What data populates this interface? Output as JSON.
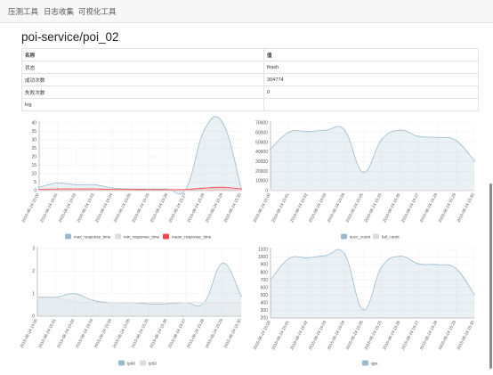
{
  "nav": {
    "items": [
      "压测工具",
      "日志收集",
      "可视化工具"
    ]
  },
  "page_title": "poi-service/poi_02",
  "info_table": {
    "headers": [
      "名称",
      "值"
    ],
    "rows": [
      {
        "key": "状态",
        "value": "finish"
      },
      {
        "key": "成功次数",
        "value": "304774"
      },
      {
        "key": "失败次数",
        "value": "0"
      },
      {
        "key": "log",
        "value": ""
      }
    ]
  },
  "categories": [
    "2015-06-24 15:00",
    "2015-06-24 15:01",
    "2015-06-24 15:02",
    "2015-06-24 15:03",
    "2015-06-24 15:04",
    "2015-06-24 15:05",
    "2015-06-24 15:25",
    "2015-06-24 15:26",
    "2015-06-24 15:27",
    "2015-06-24 15:28",
    "2015-06-24 15:29",
    "2015-06-24 15:30"
  ],
  "chart_data": [
    {
      "type": "area",
      "ylim": [
        0,
        40
      ],
      "yticks": [
        0,
        5,
        10,
        15,
        20,
        25,
        30,
        35,
        40
      ],
      "series": [
        {
          "name": "max_response_time",
          "color": "#97bbcd",
          "values": [
            2,
            4.5,
            3.5,
            3.5,
            1.5,
            1,
            1,
            1,
            1,
            36,
            40,
            1.5
          ]
        },
        {
          "name": "min_response_time",
          "color": "#dcdcdc",
          "values": [
            0,
            0,
            0,
            0,
            0,
            0,
            0,
            0,
            0,
            0,
            0,
            0
          ]
        },
        {
          "name": "mean_response_time",
          "color": "#f7464a",
          "values": [
            0.8,
            1,
            1,
            1,
            0.8,
            0.7,
            0.6,
            0.6,
            0.7,
            1.5,
            2,
            1
          ]
        }
      ]
    },
    {
      "type": "area",
      "ylim": [
        0,
        70000
      ],
      "yticks": [
        0,
        10000,
        20000,
        30000,
        40000,
        50000,
        60000,
        70000
      ],
      "series": [
        {
          "name": "succ_count",
          "color": "#97bbcd",
          "values": [
            43000,
            60500,
            61000,
            62500,
            62500,
            19000,
            53000,
            62500,
            56000,
            55000,
            52000,
            31000
          ]
        },
        {
          "name": "fail_count",
          "color": "#dcdcdc",
          "values": [
            0,
            0,
            0,
            0,
            0,
            0,
            0,
            0,
            0,
            0,
            0,
            0
          ]
        }
      ]
    },
    {
      "type": "area",
      "ylim": [
        0,
        3
      ],
      "yticks": [
        0,
        1,
        2,
        3
      ],
      "series": [
        {
          "name": "tp90",
          "color": "#97bbcd",
          "values": [
            0.85,
            0.85,
            1,
            0.7,
            0.6,
            0.6,
            0.55,
            0.55,
            0.6,
            0.6,
            2.35,
            0.9
          ]
        },
        {
          "name": "tp50",
          "color": "#dcdcdc",
          "values": [
            0.8,
            0.8,
            0.65,
            0.6,
            0.6,
            0.6,
            0.6,
            0.6,
            0.6,
            0.6,
            0.6,
            0.6
          ]
        }
      ]
    },
    {
      "type": "area",
      "ylim": [
        200,
        1100
      ],
      "yticks": [
        200,
        300,
        400,
        500,
        600,
        700,
        800,
        900,
        1000,
        1100
      ],
      "series": [
        {
          "name": "qps",
          "color": "#97bbcd",
          "values": [
            700,
            980,
            990,
            1020,
            1040,
            310,
            870,
            1010,
            910,
            900,
            850,
            510
          ]
        }
      ]
    }
  ]
}
